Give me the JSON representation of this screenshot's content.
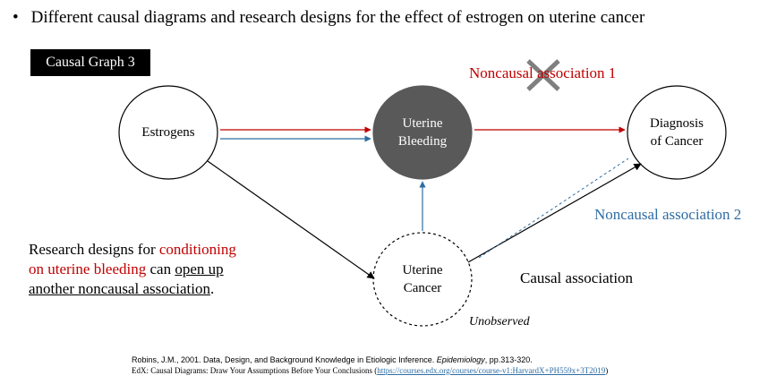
{
  "bullet": {
    "symbol": "•",
    "text": "Different causal diagrams and research designs for the effect of estrogen on uterine cancer"
  },
  "graph_label": "Causal Graph 3",
  "nodes": {
    "estrogens": "Estrogens",
    "uterine_bleeding": [
      "Uterine",
      "Bleeding"
    ],
    "diagnosis": [
      "Diagnosis",
      "of Cancer"
    ],
    "uterine_cancer": [
      "Uterine",
      "Cancer"
    ]
  },
  "labels": {
    "noncausal_1": "Noncausal association 1",
    "noncausal_2": "Noncausal association 2",
    "causal": "Causal association",
    "unobserved": "Unobserved"
  },
  "research_text": {
    "part1": "Research designs for ",
    "part2": "conditioning",
    "part3": "on uterine bleeding",
    "part4": " can ",
    "part5": "open up",
    "part6": "another noncausal association",
    "part7": "."
  },
  "references": {
    "ref1_a": "Robins, J.M., 2001. Data, Design, and Background Knowledge in Etiologic Inference. ",
    "ref1_journal": "Epidemiology",
    "ref1_b": ", pp.313-320.",
    "ref2_a": "EdX: Causal Diagrams: Draw Your Assumptions Before Your Conclusions (",
    "ref2_link": "https://courses.edx.org/courses/course-v1:HarvardX+PH559x+3T2019",
    "ref2_b": ")"
  },
  "colors": {
    "red": "#c00000",
    "blue": "#2e6da4",
    "bleeding_fill": "#595959"
  }
}
